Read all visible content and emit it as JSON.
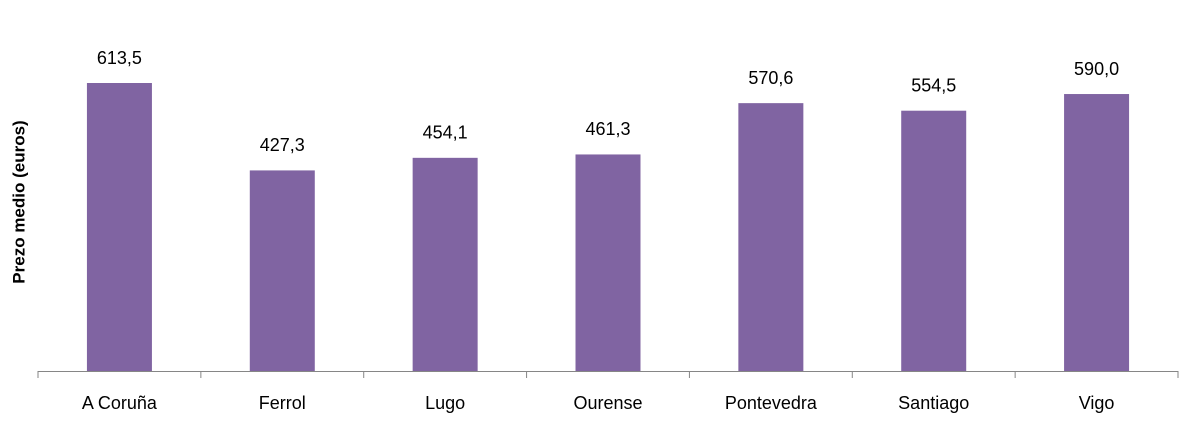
{
  "chart_data": {
    "type": "bar",
    "y_label": "Prezo medio (euros)",
    "categories": [
      "A Coruña",
      "Ferrol",
      "Lugo",
      "Ourense",
      "Pontevedra",
      "Santiago",
      "Vigo"
    ],
    "values": [
      613.5,
      427.3,
      454.1,
      461.3,
      570.6,
      554.5,
      590.0
    ],
    "value_labels": [
      "613,5",
      "427,3",
      "454,1",
      "461,3",
      "570,6",
      "554,5",
      "590,0"
    ],
    "color": "#8064a2",
    "ylim": [
      0,
      700
    ]
  }
}
